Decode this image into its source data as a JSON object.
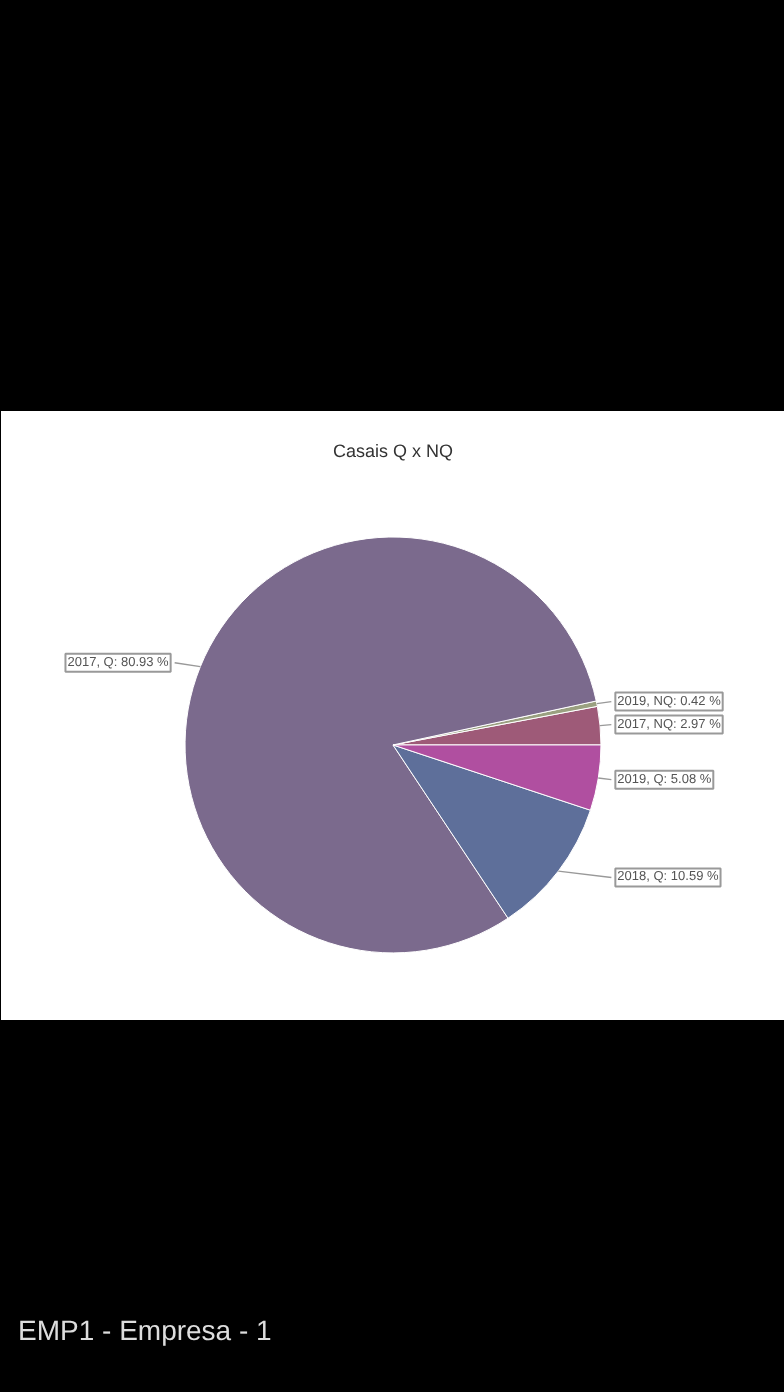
{
  "chart_data": {
    "type": "pie",
    "title": "Casais Q x NQ",
    "categories": [
      "2017, NQ",
      "2019, NQ",
      "2017, Q",
      "2018, Q",
      "2019, Q"
    ],
    "values": [
      2.97,
      0.42,
      80.93,
      10.59,
      5.08
    ],
    "colors": [
      "#9e5a78",
      "#9aa080",
      "#7b6a8d",
      "#5e6f9a",
      "#b04fa0"
    ],
    "value_labels": [
      "2.97 %",
      "0.42 %",
      "80.93 %",
      "10.59 %",
      "5.08 %"
    ],
    "annotations": [
      "EMP1 - Empresa - 1"
    ]
  }
}
